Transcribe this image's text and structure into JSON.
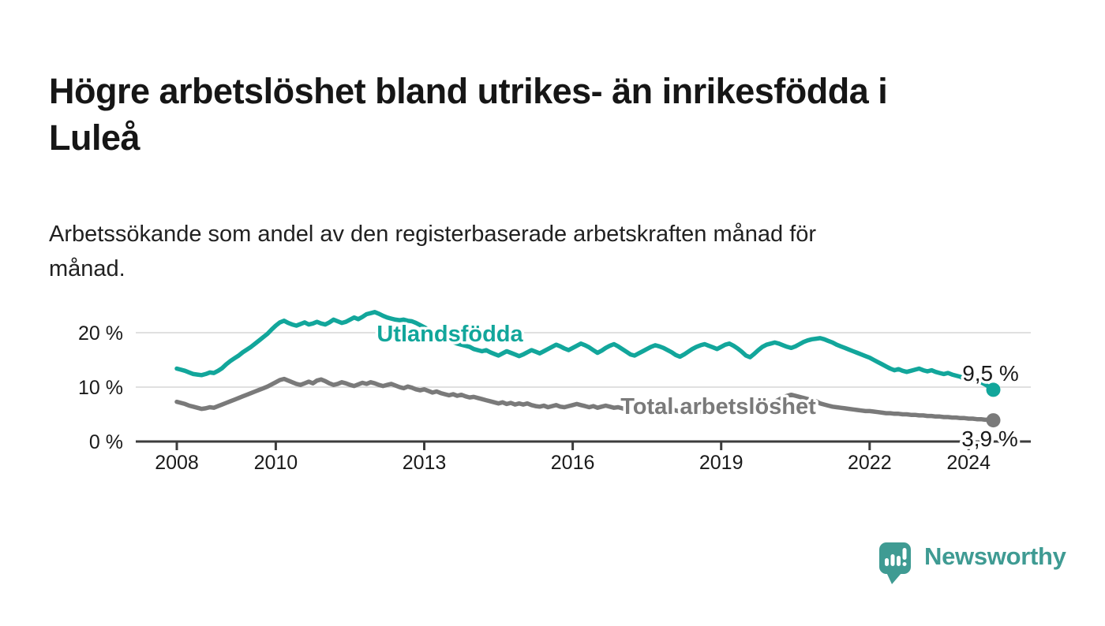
{
  "header": {
    "title": "Högre arbetslöshet bland utrikes- än inrikesfödda i Luleå",
    "title_lines": [
      "Högre arbetslöshet bland utrikes- än inrikesfödda i",
      "Luleå"
    ],
    "subtitle": "Arbetssökande som andel av den registerbaserade arbetskraften månad för månad.",
    "subtitle_lines": [
      "Arbetssökande som andel av den registerbaserade arbetskraften månad för",
      "månad."
    ]
  },
  "footer": {
    "brand": "Newsworthy",
    "logo_icon": "bar-chart-speech-bubble"
  },
  "colors": {
    "background": "#ffffff",
    "title_text": "#161616",
    "axis": "#3c3c3c",
    "gridline": "#d6d6d6",
    "tick_label": "#1a1a1a",
    "value_label": "#1a1a1a",
    "series_utlandsfodda": "#12a69b",
    "series_total": "#7a7a7a",
    "brand_teal": "#3f9b93"
  },
  "chart_data": {
    "type": "line",
    "title": "Högre arbetslöshet bland utrikes- än inrikesfödda i Luleå",
    "unit": "%",
    "frequency": "monthly",
    "x_start": "2008-01",
    "x_end": "2024-07",
    "grid": "horizontal",
    "legend_position": "inline-labels",
    "ylim": [
      0,
      25
    ],
    "yticks": [
      {
        "value": 0,
        "label": "0 %"
      },
      {
        "value": 10,
        "label": "10 %"
      },
      {
        "value": 20,
        "label": "20 %"
      }
    ],
    "xticks": [
      {
        "year": 2008,
        "label": "2008"
      },
      {
        "year": 2010,
        "label": "2010"
      },
      {
        "year": 2013,
        "label": "2013"
      },
      {
        "year": 2016,
        "label": "2016"
      },
      {
        "year": 2019,
        "label": "2019"
      },
      {
        "year": 2022,
        "label": "2022"
      },
      {
        "year": 2024,
        "label": "2024"
      }
    ],
    "series": [
      {
        "name": "Utlandsfödda",
        "color": "#12a69b",
        "end_value": 9.5,
        "end_label": "9,5 %",
        "values": [
          13.4,
          13.2,
          13.0,
          12.7,
          12.4,
          12.3,
          12.2,
          12.4,
          12.7,
          12.6,
          13.0,
          13.5,
          14.2,
          14.8,
          15.3,
          15.8,
          16.4,
          16.9,
          17.4,
          18.0,
          18.6,
          19.2,
          19.8,
          20.6,
          21.3,
          21.9,
          22.2,
          21.8,
          21.5,
          21.3,
          21.6,
          21.9,
          21.5,
          21.7,
          22.0,
          21.7,
          21.5,
          21.9,
          22.4,
          22.1,
          21.8,
          22.0,
          22.4,
          22.8,
          22.5,
          22.9,
          23.4,
          23.6,
          23.8,
          23.5,
          23.1,
          22.8,
          22.6,
          22.4,
          22.3,
          22.4,
          22.2,
          22.1,
          21.8,
          21.4,
          21.0,
          20.6,
          20.2,
          19.8,
          19.4,
          19.0,
          18.6,
          18.3,
          18.0,
          17.8,
          17.6,
          17.4,
          17.0,
          16.8,
          16.6,
          16.8,
          16.4,
          16.1,
          15.8,
          16.2,
          16.6,
          16.3,
          16.0,
          15.7,
          16.0,
          16.4,
          16.8,
          16.5,
          16.2,
          16.6,
          17.0,
          17.4,
          17.8,
          17.5,
          17.1,
          16.8,
          17.2,
          17.6,
          18.0,
          17.7,
          17.3,
          16.8,
          16.3,
          16.7,
          17.2,
          17.6,
          17.9,
          17.5,
          17.0,
          16.5,
          16.0,
          15.8,
          16.2,
          16.6,
          17.0,
          17.4,
          17.7,
          17.5,
          17.2,
          16.8,
          16.4,
          15.9,
          15.6,
          16.0,
          16.5,
          17.0,
          17.4,
          17.7,
          17.9,
          17.6,
          17.3,
          17.0,
          17.4,
          17.8,
          18.0,
          17.6,
          17.1,
          16.5,
          15.8,
          15.5,
          16.1,
          16.8,
          17.4,
          17.8,
          18.0,
          18.2,
          18.0,
          17.7,
          17.4,
          17.2,
          17.5,
          17.9,
          18.3,
          18.6,
          18.8,
          18.9,
          19.0,
          18.8,
          18.5,
          18.2,
          17.8,
          17.5,
          17.2,
          16.9,
          16.6,
          16.3,
          16.0,
          15.7,
          15.4,
          15.0,
          14.6,
          14.2,
          13.8,
          13.4,
          13.1,
          13.3,
          13.0,
          12.8,
          13.0,
          13.2,
          13.4,
          13.1,
          12.9,
          13.1,
          12.8,
          12.6,
          12.4,
          12.6,
          12.3,
          12.1,
          11.9,
          11.6,
          11.3,
          11.5,
          11.2,
          10.9,
          10.5,
          10.0,
          9.5
        ]
      },
      {
        "name": "Total arbetslöshet",
        "color": "#7a7a7a",
        "end_value": 3.9,
        "end_label": "3,9 %",
        "values": [
          7.3,
          7.1,
          6.9,
          6.6,
          6.4,
          6.2,
          6.0,
          6.1,
          6.3,
          6.2,
          6.5,
          6.8,
          7.1,
          7.4,
          7.7,
          8.0,
          8.3,
          8.6,
          8.9,
          9.2,
          9.5,
          9.8,
          10.1,
          10.5,
          10.9,
          11.3,
          11.5,
          11.2,
          10.9,
          10.6,
          10.4,
          10.7,
          11.0,
          10.7,
          11.2,
          11.4,
          11.1,
          10.7,
          10.4,
          10.6,
          10.9,
          10.7,
          10.4,
          10.2,
          10.5,
          10.8,
          10.6,
          10.9,
          10.7,
          10.4,
          10.2,
          10.4,
          10.6,
          10.3,
          10.0,
          9.8,
          10.1,
          9.9,
          9.6,
          9.4,
          9.6,
          9.3,
          9.0,
          9.2,
          8.9,
          8.7,
          8.5,
          8.7,
          8.4,
          8.6,
          8.3,
          8.1,
          8.2,
          8.0,
          7.8,
          7.6,
          7.4,
          7.2,
          7.0,
          7.2,
          6.9,
          7.1,
          6.8,
          7.0,
          6.8,
          7.0,
          6.7,
          6.5,
          6.4,
          6.6,
          6.3,
          6.5,
          6.7,
          6.4,
          6.3,
          6.5,
          6.7,
          6.9,
          6.7,
          6.5,
          6.3,
          6.5,
          6.2,
          6.4,
          6.6,
          6.4,
          6.2,
          6.3,
          6.1,
          5.9,
          6.1,
          6.3,
          6.1,
          5.9,
          5.8,
          6.0,
          6.2,
          6.0,
          5.9,
          6.1,
          5.9,
          5.7,
          5.5,
          5.7,
          5.9,
          5.7,
          5.5,
          5.4,
          5.6,
          5.8,
          5.6,
          5.7,
          5.9,
          6.1,
          5.9,
          5.7,
          5.5,
          5.7,
          5.9,
          6.1,
          6.3,
          6.5,
          6.7,
          6.9,
          7.1,
          7.3,
          7.7,
          8.1,
          8.4,
          8.6,
          8.4,
          8.2,
          8.0,
          7.8,
          7.6,
          7.4,
          7.0,
          6.8,
          6.6,
          6.4,
          6.3,
          6.2,
          6.1,
          6.0,
          5.9,
          5.8,
          5.7,
          5.6,
          5.6,
          5.5,
          5.4,
          5.3,
          5.2,
          5.2,
          5.1,
          5.1,
          5.0,
          5.0,
          4.9,
          4.9,
          4.8,
          4.8,
          4.7,
          4.7,
          4.6,
          4.6,
          4.5,
          4.5,
          4.4,
          4.4,
          4.3,
          4.3,
          4.2,
          4.2,
          4.1,
          4.1,
          4.0,
          4.0,
          3.9
        ]
      }
    ]
  }
}
